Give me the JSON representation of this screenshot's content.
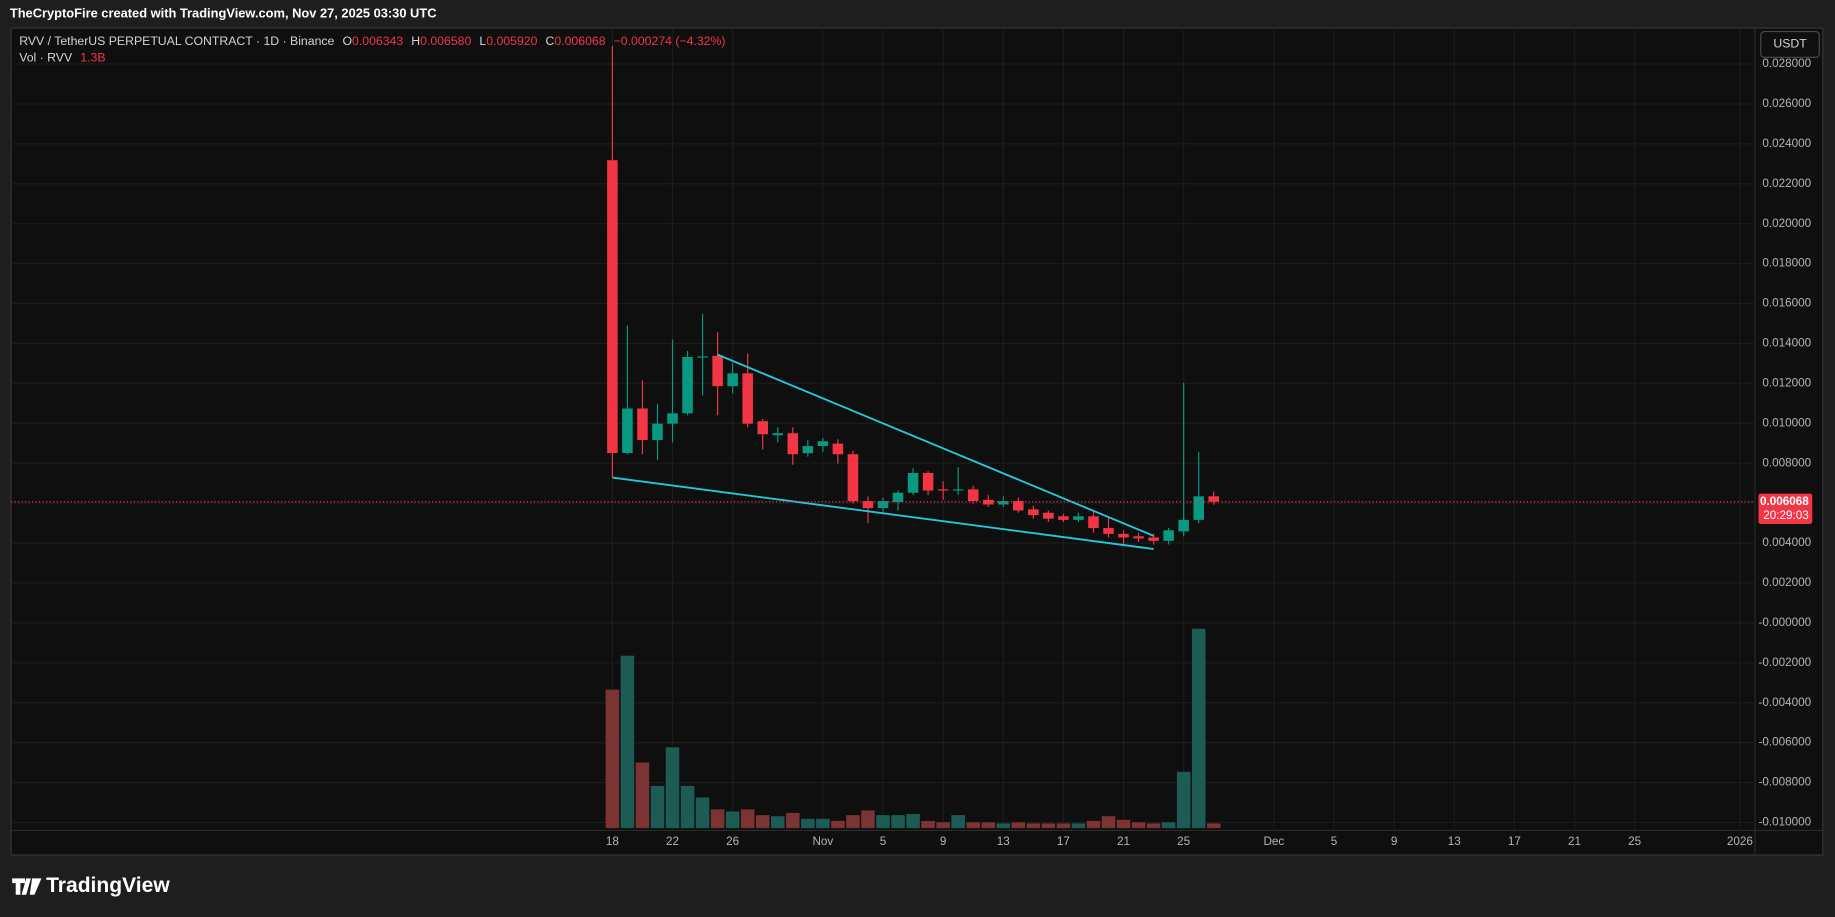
{
  "banner": "TheCryptoFire created with TradingView.com, Nov 27, 2025 03:30 UTC",
  "brand": "TradingView",
  "legend": {
    "title": "RVV / TetherUS PERPETUAL CONTRACT · 1D · Binance",
    "open_label": "O",
    "open": "0.006343",
    "high_label": "H",
    "high": "0.006580",
    "low_label": "L",
    "low": "0.005920",
    "close_label": "C",
    "close": "0.006068",
    "change": "−0.000274 (−4.32%)",
    "vol_title": "Vol · RVV",
    "vol_value": "1.3B"
  },
  "currency_button": "USDT",
  "countdown": "20:29:03",
  "chart_data": {
    "type": "candlestick",
    "x": [
      "2025-10-18",
      "2025-10-19",
      "2025-10-20",
      "2025-10-21",
      "2025-10-22",
      "2025-10-23",
      "2025-10-24",
      "2025-10-25",
      "2025-10-26",
      "2025-10-27",
      "2025-10-28",
      "2025-10-29",
      "2025-10-30",
      "2025-10-31",
      "2025-11-01",
      "2025-11-02",
      "2025-11-03",
      "2025-11-04",
      "2025-11-05",
      "2025-11-06",
      "2025-11-07",
      "2025-11-08",
      "2025-11-09",
      "2025-11-10",
      "2025-11-11",
      "2025-11-12",
      "2025-11-13",
      "2025-11-14",
      "2025-11-15",
      "2025-11-16",
      "2025-11-17",
      "2025-11-18",
      "2025-11-19",
      "2025-11-20",
      "2025-11-21",
      "2025-11-22",
      "2025-11-23",
      "2025-11-24",
      "2025-11-25",
      "2025-11-26",
      "2025-11-27"
    ],
    "open": [
      0.02318,
      0.00851,
      0.01074,
      0.00916,
      0.00998,
      0.0105,
      0.0133,
      0.01338,
      0.01186,
      0.0125,
      0.0101,
      0.0094,
      0.0095,
      0.0085,
      0.00886,
      0.00898,
      0.00845,
      0.0061,
      0.00575,
      0.00605,
      0.00652,
      0.00751,
      0.00669,
      0.00663,
      0.00669,
      0.00616,
      0.00593,
      0.0061,
      0.00569,
      0.00552,
      0.00534,
      0.00516,
      0.00534,
      0.00475,
      0.00446,
      0.00434,
      0.00428,
      0.00411,
      0.00458,
      0.00516,
      0.006343
    ],
    "high": [
      0.0289,
      0.0149,
      0.01215,
      0.01097,
      0.0142,
      0.01362,
      0.01549,
      0.01456,
      0.01303,
      0.0135,
      0.01022,
      0.0098,
      0.0098,
      0.00916,
      0.00927,
      0.0092,
      0.00863,
      0.00634,
      0.00628,
      0.00663,
      0.00775,
      0.0076,
      0.0071,
      0.0078,
      0.00687,
      0.0064,
      0.00634,
      0.00628,
      0.00587,
      0.00563,
      0.00546,
      0.00552,
      0.00558,
      0.00534,
      0.00464,
      0.00452,
      0.00446,
      0.00476,
      0.01203,
      0.00857,
      0.00658
    ],
    "low": [
      0.00728,
      0.00845,
      0.00845,
      0.00816,
      0.00904,
      0.0104,
      0.01139,
      0.0104,
      0.0115,
      0.0098,
      0.00869,
      0.00904,
      0.00792,
      0.00833,
      0.00857,
      0.00798,
      0.00598,
      0.005,
      0.00552,
      0.00563,
      0.0064,
      0.0064,
      0.00616,
      0.0064,
      0.00598,
      0.00581,
      0.00581,
      0.00552,
      0.00522,
      0.00505,
      0.00505,
      0.00505,
      0.00452,
      0.00428,
      0.00387,
      0.00405,
      0.00393,
      0.00393,
      0.00434,
      0.00499,
      0.00592
    ],
    "close": [
      0.00851,
      0.01074,
      0.00916,
      0.00998,
      0.0105,
      0.01332,
      0.01335,
      0.01186,
      0.0125,
      0.00998,
      0.00945,
      0.0095,
      0.00845,
      0.00886,
      0.0091,
      0.00845,
      0.0061,
      0.00575,
      0.0061,
      0.00652,
      0.00751,
      0.00663,
      0.00663,
      0.00669,
      0.0061,
      0.00593,
      0.0061,
      0.00563,
      0.0054,
      0.00522,
      0.00516,
      0.00534,
      0.00475,
      0.00446,
      0.00428,
      0.00423,
      0.00411,
      0.00464,
      0.00516,
      0.00634,
      0.006068
    ],
    "volume": {
      "values": [
        38.4,
        47.8,
        18.2,
        11.7,
        22.4,
        11.7,
        8.5,
        5.2,
        4.6,
        5.2,
        3.6,
        3.3,
        4.2,
        2.6,
        2.6,
        2.0,
        3.6,
        4.9,
        3.6,
        3.6,
        3.9,
        2.0,
        1.6,
        3.6,
        1.6,
        1.6,
        1.3,
        1.6,
        1.3,
        1.3,
        1.3,
        1.3,
        2.0,
        3.3,
        2.3,
        1.6,
        1.3,
        1.6,
        15.6,
        55.3,
        1.3
      ],
      "lim": [
        0,
        60
      ],
      "up_color": "#1d5c55",
      "down_color": "#7c3333"
    },
    "up_color": "#089981",
    "down_color": "#f23645",
    "trendlines": [
      {
        "color": "#26c6da",
        "points": [
          [
            "2025-10-25",
            0.01344
          ],
          [
            "2025-11-23",
            0.00436
          ]
        ]
      },
      {
        "color": "#26c6da",
        "points": [
          [
            "2025-10-18",
            0.00728
          ],
          [
            "2025-11-23",
            0.0037
          ]
        ]
      }
    ],
    "xlim": [
      "2025-09-08",
      "2026-01-02"
    ],
    "xticks": [
      {
        "value": "2025-10-18",
        "label": "18"
      },
      {
        "value": "2025-10-22",
        "label": "22"
      },
      {
        "value": "2025-10-26",
        "label": "26"
      },
      {
        "value": "2025-11-01",
        "label": "Nov"
      },
      {
        "value": "2025-11-05",
        "label": "5"
      },
      {
        "value": "2025-11-09",
        "label": "9"
      },
      {
        "value": "2025-11-13",
        "label": "13"
      },
      {
        "value": "2025-11-17",
        "label": "17"
      },
      {
        "value": "2025-11-21",
        "label": "21"
      },
      {
        "value": "2025-11-25",
        "label": "25"
      },
      {
        "value": "2025-12-01",
        "label": "Dec"
      },
      {
        "value": "2025-12-05",
        "label": "5"
      },
      {
        "value": "2025-12-09",
        "label": "9"
      },
      {
        "value": "2025-12-13",
        "label": "13"
      },
      {
        "value": "2025-12-17",
        "label": "17"
      },
      {
        "value": "2025-12-21",
        "label": "21"
      },
      {
        "value": "2025-12-25",
        "label": "25"
      },
      {
        "value": "2026-01-01",
        "label": "2026"
      }
    ],
    "ylim": [
      -0.0104,
      0.0298
    ],
    "yticks": [
      {
        "value": 0.028,
        "label": "0.028000"
      },
      {
        "value": 0.026,
        "label": "0.026000"
      },
      {
        "value": 0.024,
        "label": "0.024000"
      },
      {
        "value": 0.022,
        "label": "0.022000"
      },
      {
        "value": 0.02,
        "label": "0.020000"
      },
      {
        "value": 0.018,
        "label": "0.018000"
      },
      {
        "value": 0.016,
        "label": "0.016000"
      },
      {
        "value": 0.014,
        "label": "0.014000"
      },
      {
        "value": 0.012,
        "label": "0.012000"
      },
      {
        "value": 0.01,
        "label": "0.010000"
      },
      {
        "value": 0.008,
        "label": "0.008000"
      },
      {
        "value": 0.006,
        "label": "0.006000"
      },
      {
        "value": 0.004,
        "label": "0.004000"
      },
      {
        "value": 0.002,
        "label": "0.002000"
      },
      {
        "value": 0,
        "label": "-0.000000"
      },
      {
        "value": -0.002,
        "label": "-0.002000"
      },
      {
        "value": -0.004,
        "label": "-0.004000"
      },
      {
        "value": -0.006,
        "label": "-0.006000"
      },
      {
        "value": -0.008,
        "label": "-0.008000"
      },
      {
        "value": -0.01,
        "label": "-0.010000"
      }
    ],
    "grid": true
  }
}
